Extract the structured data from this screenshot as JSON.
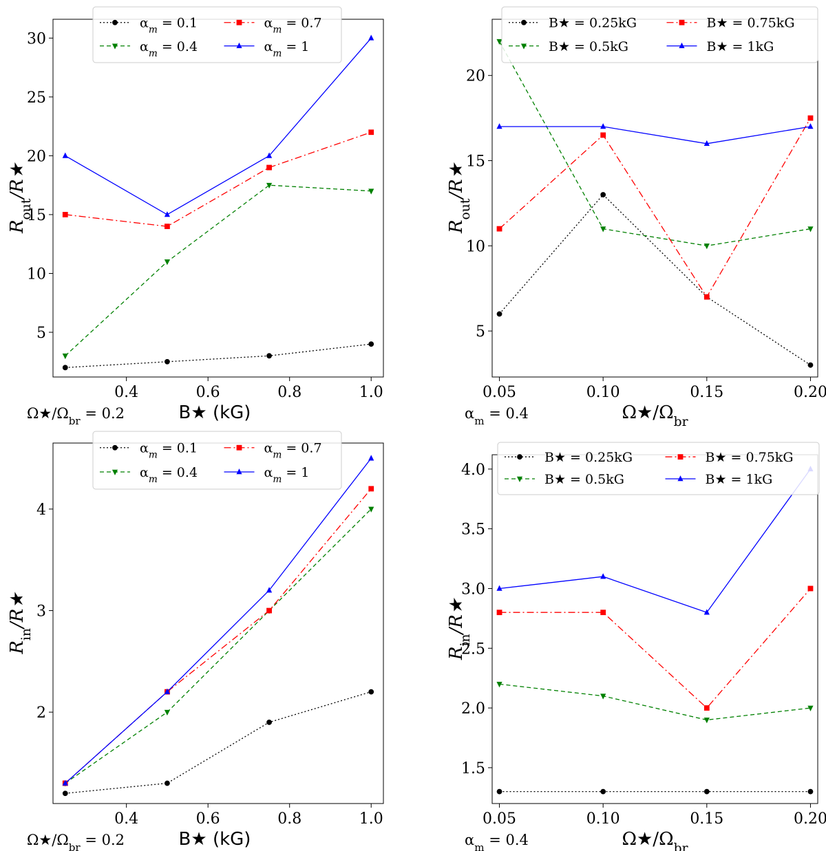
{
  "chart_data": [
    {
      "type": "line",
      "panel": "top-left",
      "x": [
        0.25,
        0.5,
        0.75,
        1.0
      ],
      "xlim": [
        0.22,
        1.03
      ],
      "ylim": [
        1.2,
        31.6
      ],
      "xticks": [
        0.4,
        0.6,
        0.8,
        1.0
      ],
      "xtick_labels": [
        "0.4",
        "0.6",
        "0.8",
        "1.0"
      ],
      "yticks": [
        5,
        10,
        15,
        20,
        25,
        30
      ],
      "ytick_labels": [
        "5",
        "10",
        "15",
        "20",
        "25",
        "30"
      ],
      "ylabel": "R_out/R★",
      "xlabel": "B★ (kG)",
      "annotation": "Ω★/Ω_br = 0.2",
      "legend_placement": "top-center",
      "series": [
        {
          "name": "α_m = 0.1",
          "values": [
            2,
            2.5,
            3,
            4
          ]
        },
        {
          "name": "α_m = 0.4",
          "values": [
            3,
            11,
            17.5,
            17
          ]
        },
        {
          "name": "α_m = 0.7",
          "values": [
            15,
            14,
            19,
            22
          ]
        },
        {
          "name": "α_m = 1",
          "values": [
            20,
            15,
            20,
            30
          ]
        }
      ]
    },
    {
      "type": "line",
      "panel": "top-right",
      "x": [
        0.05,
        0.1,
        0.15,
        0.2
      ],
      "xlim": [
        0.0465,
        0.2035
      ],
      "ylim": [
        2.3,
        23.3
      ],
      "xticks": [
        0.05,
        0.1,
        0.15,
        0.2
      ],
      "xtick_labels": [
        "0.05",
        "0.10",
        "0.15",
        "0.20"
      ],
      "yticks": [
        5,
        10,
        15,
        20
      ],
      "ytick_labels": [
        "5",
        "10",
        "15",
        "20"
      ],
      "ylabel": "R_out/R★",
      "xlabel": "Ω★/Ω_br",
      "annotation": "α_m = 0.4",
      "legend_placement": "top-center",
      "series": [
        {
          "name": "B★ = 0.25kG",
          "values": [
            6,
            13,
            7,
            3
          ]
        },
        {
          "name": "B★ = 0.5kG",
          "values": [
            22,
            11,
            10,
            11
          ]
        },
        {
          "name": "B★ = 0.75kG",
          "values": [
            11,
            16.5,
            7,
            17.5
          ]
        },
        {
          "name": "B★ = 1kG",
          "values": [
            17,
            17,
            16,
            17
          ]
        }
      ]
    },
    {
      "type": "line",
      "panel": "bottom-left",
      "x": [
        0.25,
        0.5,
        0.75,
        1.0
      ],
      "xlim": [
        0.22,
        1.03
      ],
      "ylim": [
        1.1,
        4.65
      ],
      "xticks": [
        0.4,
        0.6,
        0.8,
        1.0
      ],
      "xtick_labels": [
        "0.4",
        "0.6",
        "0.8",
        "1.0"
      ],
      "yticks": [
        2,
        3,
        4
      ],
      "ytick_labels": [
        "2",
        "3",
        "4"
      ],
      "ylabel": "R_in/R★",
      "xlabel": "B★ (kG)",
      "annotation": "Ω★/Ω_br = 0.2",
      "legend_placement": "top-center",
      "series": [
        {
          "name": "α_m = 0.1",
          "values": [
            1.2,
            1.3,
            1.9,
            2.2
          ]
        },
        {
          "name": "α_m = 0.4",
          "values": [
            1.3,
            2.0,
            3.0,
            4.0
          ]
        },
        {
          "name": "α_m = 0.7",
          "values": [
            1.3,
            2.2,
            3.0,
            4.2
          ]
        },
        {
          "name": "α_m = 1",
          "values": [
            1.3,
            2.2,
            3.2,
            4.5
          ]
        }
      ]
    },
    {
      "type": "line",
      "panel": "bottom-right",
      "x": [
        0.05,
        0.1,
        0.15,
        0.2
      ],
      "xlim": [
        0.0465,
        0.2035
      ],
      "ylim": [
        1.2,
        4.12
      ],
      "xticks": [
        0.05,
        0.1,
        0.15,
        0.2
      ],
      "xtick_labels": [
        "0.05",
        "0.10",
        "0.15",
        "0.20"
      ],
      "yticks": [
        1.5,
        2.0,
        2.5,
        3.0,
        3.5,
        4.0
      ],
      "ytick_labels": [
        "1.5",
        "2.0",
        "2.5",
        "3.0",
        "3.5",
        "4.0"
      ],
      "ylabel": "R_in/R★",
      "xlabel": "Ω★/Ω_br",
      "annotation": "α_m = 0.4",
      "legend_placement": "top-center",
      "series": [
        {
          "name": "B★ = 0.25kG",
          "values": [
            1.3,
            1.3,
            1.3,
            1.3
          ]
        },
        {
          "name": "B★ = 0.5kG",
          "values": [
            2.2,
            2.1,
            1.9,
            2.0
          ]
        },
        {
          "name": "B★ = 0.75kG",
          "values": [
            2.8,
            2.8,
            2.0,
            3.0
          ]
        },
        {
          "name": "B★ = 1kG",
          "values": [
            3.0,
            3.1,
            2.8,
            4.0
          ]
        }
      ]
    }
  ],
  "series_colors": [
    "#000000",
    "#008000",
    "#ff0000",
    "#0000ff"
  ],
  "series_markers": [
    "circle",
    "triangle-down",
    "square",
    "triangle-up"
  ]
}
